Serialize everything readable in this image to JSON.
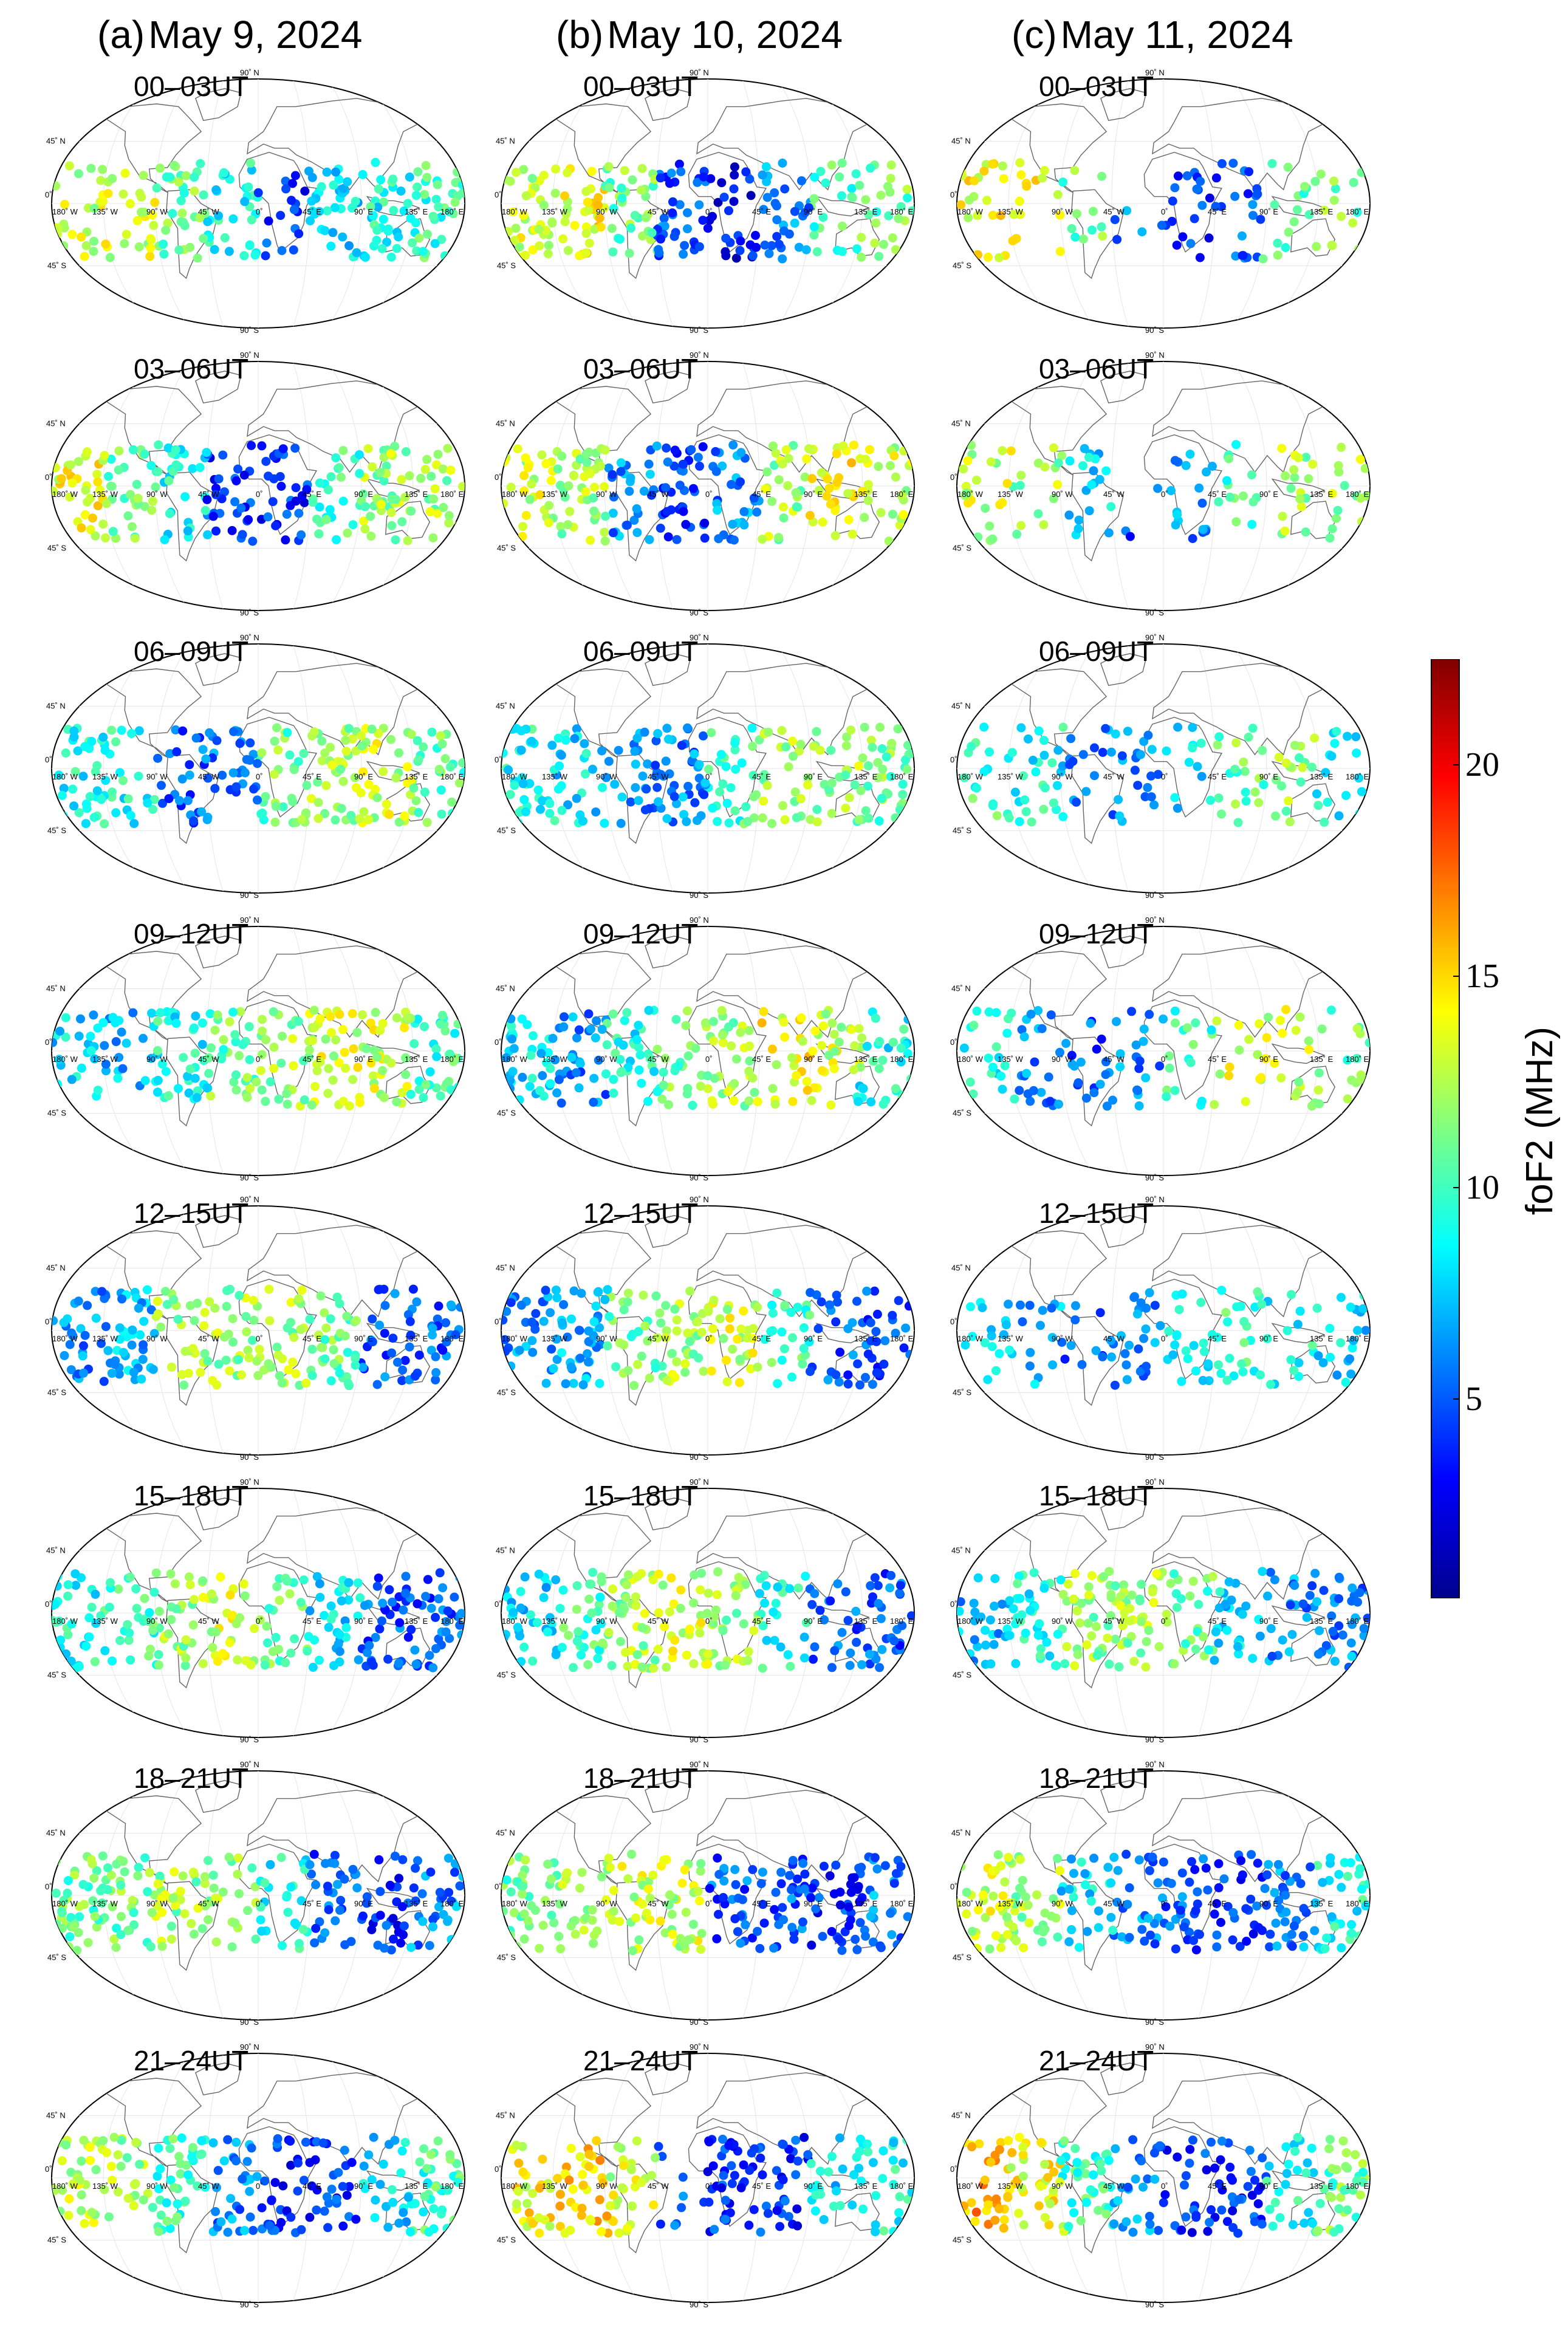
{
  "figure": {
    "columns": [
      {
        "tag": "(a)",
        "date": "May 9, 2024"
      },
      {
        "tag": "(b)",
        "date": "May 10, 2024"
      },
      {
        "tag": "(c)",
        "date": "May 11, 2024"
      }
    ],
    "time_slots": [
      "00–03UT",
      "03–06UT",
      "06–09UT",
      "09–12UT",
      "12–15UT",
      "15–18UT",
      "18–21UT",
      "21–24UT"
    ],
    "map_labels": {
      "lat_n90": "90˚ N",
      "lat_n45": "45˚ N",
      "lat_0": "0˚",
      "lat_s45": "45˚ S",
      "lat_s90": "90˚ S",
      "lon_w180": "180˚ W",
      "lon_w135": "135˚ W",
      "lon_w90": "90˚ W",
      "lon_w45": "45˚ W",
      "lon_0": "0˚",
      "lon_e45": "45˚ E",
      "lon_e90": "90˚ E",
      "lon_e135": "135˚ E",
      "lon_e180": "180˚ E"
    }
  },
  "chart_data": {
    "type": "scatter",
    "projection": "Robinson (global map)",
    "variable": "foF2",
    "colorbar": {
      "label": "foF2 (MHz)",
      "ticks": [
        5,
        10,
        15,
        20
      ],
      "range": [
        0.3,
        22.5
      ],
      "colormap": [
        "#00008f",
        "#0000ff",
        "#0080ff",
        "#00ffff",
        "#80ff80",
        "#ffff00",
        "#ff8000",
        "#ff0000",
        "#800000"
      ]
    },
    "panel_grid": {
      "rows_time_slots": 8,
      "columns_dates": 3
    },
    "regional_means_note": "approximate foF2 (MHz) by longitude band: [-180..-135, -135..-90, -90..-45, -45..0, 0..45, 45..90, 90..135, 135..180]",
    "regional_means": {
      "May 9, 2024": [
        [
          13,
          13,
          11,
          9,
          4,
          8,
          9,
          10
        ],
        [
          14,
          11,
          9,
          4,
          4,
          10,
          12,
          12
        ],
        [
          9,
          9,
          5,
          6,
          11,
          12,
          13,
          11
        ],
        [
          8,
          7,
          9,
          11,
          12,
          13,
          13,
          10
        ],
        [
          6,
          7,
          12,
          12,
          12,
          11,
          5,
          5
        ],
        [
          9,
          10,
          12,
          13,
          11,
          8,
          5,
          5
        ],
        [
          11,
          11,
          12,
          12,
          9,
          5,
          4,
          6
        ],
        [
          13,
          12,
          10,
          6,
          4,
          4,
          8,
          10
        ]
      ],
      "May 10, 2024": [
        [
          13,
          14,
          11,
          5,
          3,
          6,
          10,
          11
        ],
        [
          13,
          12,
          6,
          4,
          6,
          12,
          14,
          13
        ],
        [
          9,
          8,
          6,
          6,
          10,
          12,
          12,
          11
        ],
        [
          8,
          6,
          9,
          11,
          12,
          14,
          13,
          9
        ],
        [
          6,
          7,
          11,
          12,
          13,
          10,
          5,
          5
        ],
        [
          8,
          10,
          12,
          13,
          12,
          9,
          5,
          5
        ],
        [
          11,
          12,
          13,
          13,
          5,
          5,
          4,
          6
        ],
        [
          14,
          15,
          13,
          5,
          4,
          4,
          8,
          9
        ]
      ],
      "May 11, 2024": [
        [
          14,
          14,
          11,
          6,
          4,
          5,
          10,
          11
        ],
        [
          13,
          12,
          8,
          5,
          6,
          10,
          12,
          12
        ],
        [
          10,
          9,
          6,
          6,
          8,
          11,
          12,
          9
        ],
        [
          9,
          6,
          5,
          6,
          10,
          13,
          13,
          11
        ],
        [
          8,
          7,
          5,
          6,
          9,
          10,
          9,
          8
        ],
        [
          7,
          9,
          12,
          12,
          11,
          8,
          6,
          6
        ],
        [
          13,
          12,
          8,
          6,
          5,
          4,
          6,
          9
        ],
        [
          16,
          14,
          10,
          6,
          4,
          4,
          9,
          11
        ]
      ]
    }
  }
}
